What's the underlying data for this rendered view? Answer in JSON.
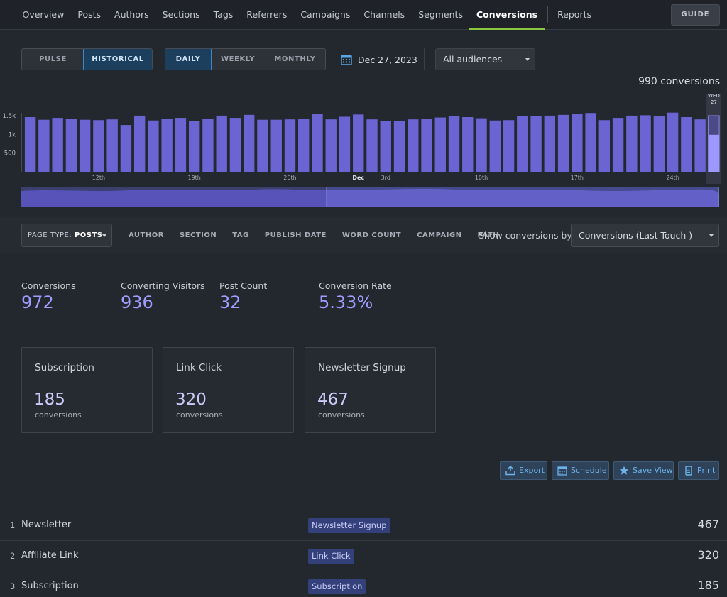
{
  "nav": {
    "items": [
      "Overview",
      "Posts",
      "Authors",
      "Sections",
      "Tags",
      "Referrers",
      "Campaigns",
      "Channels",
      "Segments",
      "Conversions",
      "Reports"
    ],
    "active": "Conversions",
    "guide_label": "GUIDE"
  },
  "controls": {
    "mode": [
      "PULSE",
      "HISTORICAL"
    ],
    "mode_active": "HISTORICAL",
    "period": [
      "DAILY",
      "WEEKLY",
      "MONTHLY"
    ],
    "period_active": "DAILY",
    "date": "Dec 27, 2023",
    "audience": "All audiences"
  },
  "chart_data": {
    "type": "bar",
    "total_label": "990 conversions",
    "yticks": [
      "1.5k",
      "1k",
      "500"
    ],
    "ytick_values": [
      1500,
      1000,
      500
    ],
    "ylim": [
      0,
      1650
    ],
    "xlabels": [
      {
        "index": 5,
        "label": "12th",
        "bold": false
      },
      {
        "index": 12,
        "label": "19th",
        "bold": false
      },
      {
        "index": 19,
        "label": "26th",
        "bold": false
      },
      {
        "index": 24,
        "label": "Dec",
        "bold": true
      },
      {
        "index": 26,
        "label": "3rd",
        "bold": false
      },
      {
        "index": 33,
        "label": "10th",
        "bold": false
      },
      {
        "index": 40,
        "label": "17th",
        "bold": false
      },
      {
        "index": 47,
        "label": "24th",
        "bold": false
      }
    ],
    "highlight": {
      "index": 50,
      "day": "WED",
      "date": "27"
    },
    "values": [
      1460,
      1390,
      1440,
      1420,
      1390,
      1380,
      1400,
      1250,
      1500,
      1370,
      1410,
      1440,
      1360,
      1420,
      1500,
      1440,
      1520,
      1390,
      1390,
      1400,
      1420,
      1550,
      1400,
      1470,
      1530,
      1400,
      1360,
      1360,
      1400,
      1420,
      1450,
      1480,
      1460,
      1430,
      1370,
      1380,
      1480,
      1480,
      1500,
      1520,
      1540,
      1570,
      1380,
      1440,
      1500,
      1510,
      1480,
      1580,
      1460,
      1400,
      990
    ]
  },
  "filters": {
    "page_type_label": "PAGE TYPE:",
    "page_type_value": "POSTS",
    "tabs": [
      "AUTHOR",
      "SECTION",
      "TAG",
      "PUBLISH DATE",
      "WORD COUNT",
      "CAMPAIGN",
      "PATH"
    ],
    "show_by_label": "Show conversions by:",
    "show_by_value": "Conversions (Last Touch )"
  },
  "metrics": [
    {
      "label": "Conversions",
      "value": "972"
    },
    {
      "label": "Converting Visitors",
      "value": "936"
    },
    {
      "label": "Post Count",
      "value": "32"
    },
    {
      "label": "Conversion Rate",
      "value": "5.33%"
    }
  ],
  "cards": [
    {
      "title": "Subscription",
      "value": "185",
      "unit": "conversions"
    },
    {
      "title": "Link Click",
      "value": "320",
      "unit": "conversions"
    },
    {
      "title": "Newsletter Signup",
      "value": "467",
      "unit": "conversions"
    }
  ],
  "actions": {
    "export": "Export",
    "schedule": "Schedule",
    "save_view": "Save View",
    "print": "Print"
  },
  "rows": [
    {
      "rank": "1",
      "name": "Newsletter",
      "tag": "Newsletter Signup",
      "count": "467"
    },
    {
      "rank": "2",
      "name": "Affiliate Link",
      "tag": "Link Click",
      "count": "320"
    },
    {
      "rank": "3",
      "name": "Subscription",
      "tag": "Subscription",
      "count": "185"
    }
  ]
}
